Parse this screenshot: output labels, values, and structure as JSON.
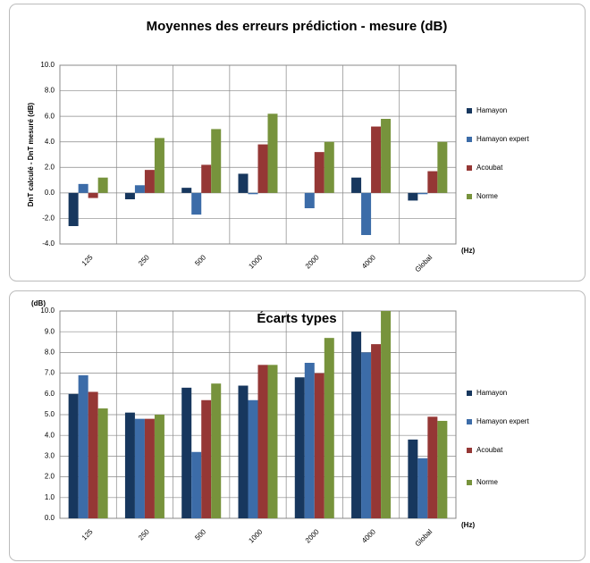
{
  "chart_data": [
    {
      "type": "bar",
      "title": "Moyennes des erreurs prédiction - mesure (dB)",
      "y_label": "DnT calculé - DnT mesuré (dB)",
      "x_label": "(Hz)",
      "categories": [
        "125",
        "250",
        "500",
        "1000",
        "2000",
        "4000",
        "Global"
      ],
      "series": [
        {
          "name": "Hamayon",
          "color": "#17375e",
          "values": [
            -2.6,
            -0.5,
            0.4,
            1.5,
            0.0,
            1.2,
            -0.6
          ]
        },
        {
          "name": "Hamayon expert",
          "color": "#3c6ca8",
          "values": [
            0.7,
            0.6,
            -1.7,
            -0.1,
            -1.2,
            -3.3,
            -0.1
          ]
        },
        {
          "name": "Acoubat",
          "color": "#953735",
          "values": [
            -0.4,
            1.8,
            2.2,
            3.8,
            3.2,
            5.2,
            1.7
          ]
        },
        {
          "name": "Norme",
          "color": "#77933c",
          "values": [
            1.2,
            4.3,
            5.0,
            6.2,
            4.0,
            5.8,
            4.0
          ]
        }
      ],
      "ylim": [
        -4,
        10
      ],
      "yticks": [
        {
          "value": -4,
          "label": "-4.0"
        },
        {
          "value": -2,
          "label": "-2.0"
        },
        {
          "value": 0,
          "label": "0.0"
        },
        {
          "value": 2,
          "label": "2.0"
        },
        {
          "value": 4,
          "label": "4.0"
        },
        {
          "value": 6,
          "label": "6.0"
        },
        {
          "value": 8,
          "label": "8.0"
        },
        {
          "value": 10,
          "label": "10.0"
        }
      ],
      "grid": true,
      "legend": "right"
    },
    {
      "type": "bar",
      "title": "Écarts types",
      "y_label": "(dB)",
      "x_label": "(Hz)",
      "categories": [
        "125",
        "250",
        "500",
        "1000",
        "2000",
        "4000",
        "Global"
      ],
      "series": [
        {
          "name": "Hamayon",
          "color": "#17375e",
          "values": [
            6.0,
            5.1,
            6.3,
            6.4,
            6.8,
            9.0,
            3.8
          ]
        },
        {
          "name": "Hamayon expert",
          "color": "#3c6ca8",
          "values": [
            6.9,
            4.8,
            3.2,
            5.7,
            7.5,
            8.0,
            2.9
          ]
        },
        {
          "name": "Acoubat",
          "color": "#953735",
          "values": [
            6.1,
            4.8,
            5.7,
            7.4,
            7.0,
            8.4,
            4.9
          ]
        },
        {
          "name": "Norme",
          "color": "#77933c",
          "values": [
            5.3,
            5.0,
            6.5,
            7.4,
            8.7,
            10.0,
            4.7
          ]
        }
      ],
      "ylim": [
        0,
        10
      ],
      "yticks": [
        {
          "value": 0,
          "label": "0.0"
        },
        {
          "value": 1,
          "label": "1.0"
        },
        {
          "value": 2,
          "label": "2.0"
        },
        {
          "value": 3,
          "label": "3.0"
        },
        {
          "value": 4,
          "label": "4.0"
        },
        {
          "value": 5,
          "label": "5.0"
        },
        {
          "value": 6,
          "label": "6.0"
        },
        {
          "value": 7,
          "label": "7.0"
        },
        {
          "value": 8,
          "label": "8.0"
        },
        {
          "value": 9,
          "label": "9.0"
        },
        {
          "value": 10,
          "label": "10.0"
        }
      ],
      "grid": true,
      "legend": "right"
    }
  ]
}
